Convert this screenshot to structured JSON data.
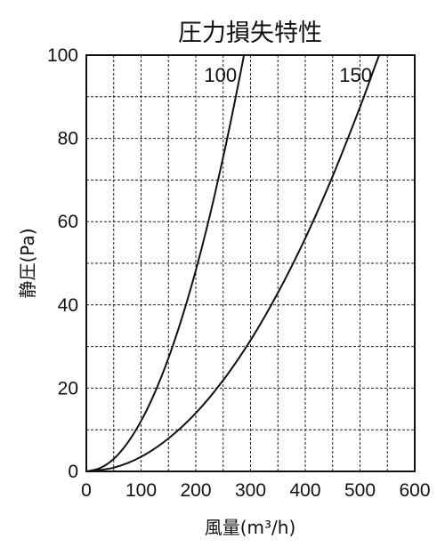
{
  "chart_data": {
    "type": "line",
    "title": "圧力損失特性",
    "xlabel": "風量(m³/h)",
    "ylabel": "静圧(Pa)",
    "xlim": [
      0,
      600
    ],
    "ylim": [
      0,
      100
    ],
    "x_ticks": [
      0,
      100,
      200,
      300,
      400,
      500,
      600
    ],
    "y_ticks": [
      0,
      20,
      40,
      60,
      80,
      100
    ],
    "x_grid_step": 50,
    "y_grid_step": 10,
    "grid": true,
    "series": [
      {
        "name": "100",
        "x": [
          0,
          25,
          50,
          75,
          100,
          125,
          150,
          175,
          200,
          225,
          250,
          265,
          280,
          288
        ],
        "y": [
          0,
          0.8,
          3,
          6.8,
          12.1,
          18.9,
          27.2,
          37.0,
          48.3,
          61.1,
          75.5,
          84.8,
          94.6,
          100
        ]
      },
      {
        "name": "150",
        "x": [
          0,
          50,
          100,
          150,
          200,
          250,
          300,
          350,
          400,
          450,
          500,
          525,
          535
        ],
        "y": [
          0,
          0.9,
          3.5,
          7.9,
          14.0,
          21.9,
          31.5,
          42.9,
          56.0,
          70.9,
          87.5,
          96.5,
          100
        ]
      }
    ]
  }
}
